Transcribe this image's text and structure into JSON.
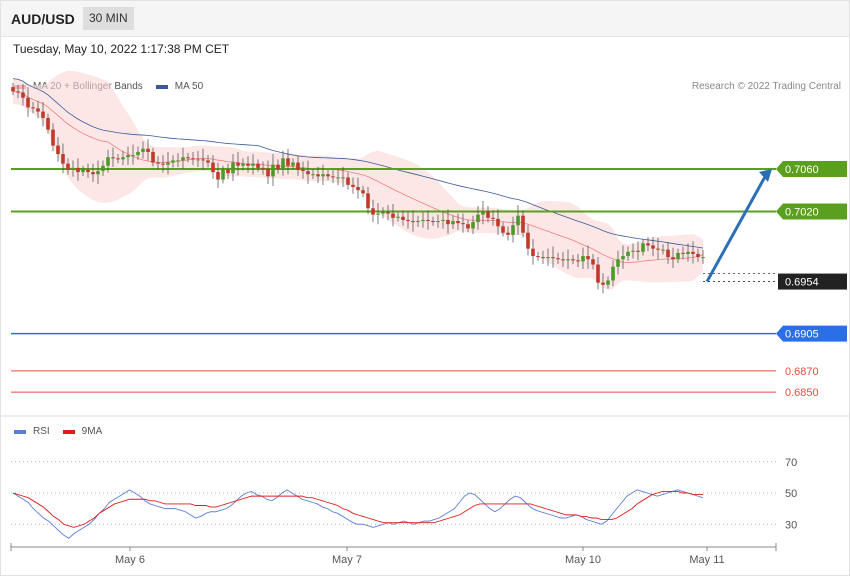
{
  "header": {
    "symbol": "AUD/USD",
    "timeframe": "30 MIN",
    "datetime": "Tuesday, May 10, 2022 1:17:38 PM CET"
  },
  "legend": {
    "ma20": {
      "label": "MA 20 + Bollinger Bands",
      "color": "#f08080"
    },
    "ma50": {
      "label": "MA 50",
      "color": "#3a5a9a"
    },
    "rsi": {
      "label": "RSI",
      "color": "#5b7fd6"
    },
    "ma9": {
      "label": "9MA",
      "color": "#e31a1c"
    }
  },
  "credit": "Research © 2022 Trading Central",
  "chart_data": [
    {
      "type": "candlestick",
      "ylim": [
        0.6835,
        0.7155
      ],
      "x_ticks": [
        "May 6",
        "May 7",
        "May 10",
        "May 11"
      ],
      "levels": [
        {
          "value": 0.706,
          "label": "0.7060",
          "color": "#5aa01e",
          "kind": "resistance"
        },
        {
          "value": 0.702,
          "label": "0.7020",
          "color": "#5aa01e",
          "kind": "resistance"
        },
        {
          "value": 0.6954,
          "label": "0.6954",
          "color": "#222222",
          "kind": "current"
        },
        {
          "value": 0.6905,
          "label": "0.6905",
          "color": "#2a6fe8",
          "kind": "support"
        },
        {
          "value": 0.687,
          "label": "0.6870",
          "color": "#e74c3c",
          "kind": "support"
        },
        {
          "value": 0.685,
          "label": "0.6850",
          "color": "#e74c3c",
          "kind": "support"
        }
      ],
      "arrow": {
        "from": 0.6954,
        "to": 0.706,
        "color": "#2a6fb8"
      },
      "close": [
        0.7133,
        0.7132,
        0.7127,
        0.7118,
        0.7117,
        0.7114,
        0.7108,
        0.7097,
        0.7082,
        0.7074,
        0.7065,
        0.7059,
        0.7061,
        0.7057,
        0.7059,
        0.7057,
        0.7055,
        0.7058,
        0.7063,
        0.7071,
        0.707,
        0.7069,
        0.7071,
        0.7073,
        0.7073,
        0.7076,
        0.7079,
        0.7076,
        0.7066,
        0.7065,
        0.7064,
        0.7066,
        0.7068,
        0.7068,
        0.7071,
        0.707,
        0.7069,
        0.7069,
        0.7068,
        0.7066,
        0.7057,
        0.705,
        0.7059,
        0.7056,
        0.7066,
        0.7063,
        0.7065,
        0.7063,
        0.7065,
        0.7061,
        0.706,
        0.7053,
        0.7064,
        0.706,
        0.707,
        0.7063,
        0.7066,
        0.7059,
        0.7058,
        0.7055,
        0.7055,
        0.7053,
        0.7055,
        0.7053,
        0.7052,
        0.7052,
        0.7052,
        0.7045,
        0.7043,
        0.704,
        0.7037,
        0.7023,
        0.7017,
        0.7018,
        0.7019,
        0.7018,
        0.7014,
        0.7015,
        0.7012,
        0.7011,
        0.701,
        0.7011,
        0.7012,
        0.7011,
        0.701,
        0.7011,
        0.7012,
        0.7008,
        0.7011,
        0.7009,
        0.7008,
        0.7004,
        0.701,
        0.7017,
        0.702,
        0.7014,
        0.7013,
        0.7006,
        0.7,
        0.6998,
        0.7007,
        0.7016,
        0.7,
        0.6985,
        0.6978,
        0.6977,
        0.6976,
        0.6977,
        0.6976,
        0.6975,
        0.6974,
        0.6975,
        0.6974,
        0.6973,
        0.6978,
        0.6975,
        0.697,
        0.6953,
        0.6951,
        0.6955,
        0.6968,
        0.6975,
        0.6978,
        0.6982,
        0.6983,
        0.6982,
        0.699,
        0.6988,
        0.6985,
        0.6984,
        0.6984,
        0.6977,
        0.6975,
        0.6981,
        0.698,
        0.6982,
        0.698,
        0.6977,
        0.6977
      ]
    },
    {
      "type": "line",
      "ylim": [
        18,
        82
      ],
      "y_ticks": [
        70,
        50,
        30
      ],
      "series": [
        {
          "name": "RSI",
          "values": [
            50,
            48,
            46,
            44,
            40,
            37,
            34,
            32,
            29,
            26,
            23,
            21,
            24,
            26,
            28,
            30,
            33,
            37,
            40,
            44,
            46,
            48,
            50,
            52,
            50,
            48,
            45,
            43,
            42,
            41,
            40,
            40,
            40,
            39,
            38,
            36,
            34,
            35,
            37,
            38,
            38,
            39,
            40,
            42,
            45,
            48,
            50,
            51,
            49,
            48,
            46,
            45,
            47,
            50,
            52,
            50,
            48,
            46,
            45,
            44,
            43,
            41,
            40,
            38,
            37,
            35,
            33,
            31,
            30,
            30,
            29,
            28,
            29,
            30,
            31,
            30,
            31,
            32,
            31,
            30,
            31,
            32,
            32,
            33,
            34,
            36,
            38,
            40,
            44,
            48,
            50,
            49,
            46,
            43,
            40,
            38,
            40,
            43,
            46,
            48,
            47,
            44,
            41,
            39,
            38,
            37,
            36,
            35,
            34,
            34,
            35,
            36,
            35,
            33,
            32,
            31,
            30,
            32,
            36,
            40,
            44,
            48,
            50,
            52,
            51,
            50,
            49,
            48,
            49,
            50,
            51,
            52,
            51,
            50,
            49,
            48,
            47
          ]
        },
        {
          "name": "9MA",
          "values": [
            50,
            49,
            48,
            47,
            45,
            43,
            41,
            38,
            35,
            33,
            30,
            29,
            28,
            29,
            30,
            32,
            34,
            37,
            39,
            41,
            43,
            44,
            45,
            46,
            46,
            46,
            46,
            45,
            45,
            44,
            43,
            43,
            43,
            43,
            43,
            43,
            42,
            42,
            42,
            41,
            41,
            42,
            43,
            44,
            45,
            46,
            47,
            48,
            48,
            48,
            48,
            48,
            48,
            48,
            48,
            48,
            48,
            48,
            47,
            47,
            46,
            45,
            44,
            43,
            42,
            40,
            39,
            37,
            36,
            35,
            34,
            33,
            32,
            31,
            31,
            31,
            31,
            31,
            31,
            31,
            31,
            31,
            31,
            31,
            32,
            33,
            34,
            35,
            36,
            38,
            40,
            42,
            43,
            43,
            43,
            43,
            43,
            43,
            43,
            43,
            43,
            43,
            43,
            42,
            41,
            40,
            39,
            38,
            37,
            36,
            36,
            36,
            35,
            35,
            34,
            34,
            33,
            33,
            33,
            34,
            36,
            38,
            40,
            43,
            45,
            47,
            49,
            50,
            51,
            51,
            51,
            51,
            50,
            50,
            49,
            49,
            49
          ]
        }
      ]
    }
  ]
}
